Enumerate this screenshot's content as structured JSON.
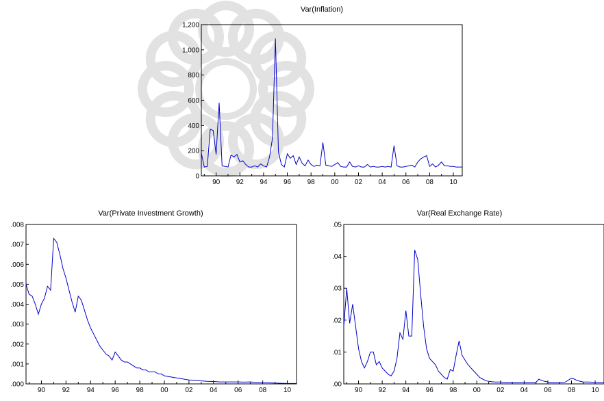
{
  "colors": {
    "line": "#0000cc",
    "axis": "#000000",
    "watermark": "#e2e2e2"
  },
  "watermark": {
    "icon": "decorative-rosette-watermark-icon"
  },
  "chart_data": [
    {
      "type": "line",
      "title": "Var(Inflation)",
      "xlabel": "",
      "ylabel": "",
      "xlim": [
        1988.75,
        2010.75
      ],
      "ylim": [
        0,
        1200
      ],
      "grid": false,
      "x_ticks": [
        "90",
        "92",
        "94",
        "96",
        "98",
        "00",
        "02",
        "04",
        "06",
        "08",
        "10"
      ],
      "y_ticks": [
        "0",
        "200",
        "400",
        "600",
        "800",
        "1,000",
        "1,200"
      ],
      "y_tick_values": [
        0,
        200,
        400,
        600,
        800,
        1000,
        1200
      ],
      "series": [
        {
          "x": [
            1988.75,
            1989.0,
            1989.25,
            1989.5,
            1989.75,
            1990.0,
            1990.25,
            1990.5,
            1990.75,
            1991.0,
            1991.25,
            1991.5,
            1991.75,
            1992.0,
            1992.25,
            1992.5,
            1992.75,
            1993.0,
            1993.25,
            1993.5,
            1993.75,
            1994.0,
            1994.25,
            1994.5,
            1994.75,
            1995.0,
            1995.25,
            1995.5,
            1995.75,
            1996.0,
            1996.25,
            1996.5,
            1996.75,
            1997.0,
            1997.25,
            1997.5,
            1997.75,
            1998.0,
            1998.25,
            1998.5,
            1998.75,
            1999.0,
            1999.25,
            1999.5,
            1999.75,
            2000.0,
            2000.25,
            2000.5,
            2000.75,
            2001.0,
            2001.25,
            2001.5,
            2001.75,
            2002.0,
            2002.25,
            2002.5,
            2002.75,
            2003.0,
            2003.25,
            2003.5,
            2003.75,
            2004.0,
            2004.25,
            2004.5,
            2004.75,
            2005.0,
            2005.25,
            2005.5,
            2005.75,
            2006.0,
            2006.25,
            2006.5,
            2006.75,
            2007.0,
            2007.25,
            2007.5,
            2007.75,
            2008.0,
            2008.25,
            2008.5,
            2008.75,
            2009.0,
            2009.25,
            2009.5,
            2009.75,
            2010.0,
            2010.25,
            2010.5,
            2010.75
          ],
          "y": [
            180,
            70,
            75,
            370,
            360,
            170,
            580,
            80,
            75,
            70,
            165,
            150,
            170,
            110,
            120,
            90,
            70,
            70,
            80,
            70,
            95,
            80,
            70,
            150,
            300,
            1090,
            190,
            90,
            70,
            175,
            140,
            160,
            90,
            150,
            100,
            80,
            125,
            90,
            75,
            85,
            80,
            265,
            85,
            80,
            75,
            90,
            105,
            75,
            70,
            70,
            110,
            75,
            70,
            80,
            70,
            70,
            90,
            70,
            75,
            70,
            70,
            75,
            70,
            75,
            70,
            240,
            80,
            70,
            70,
            75,
            80,
            85,
            70,
            110,
            135,
            150,
            160,
            75,
            95,
            70,
            85,
            110,
            80,
            80,
            75,
            75,
            70,
            70,
            70
          ]
        }
      ]
    },
    {
      "type": "line",
      "title": "Var(Private Investment Growth)",
      "xlabel": "",
      "ylabel": "",
      "xlim": [
        1988.75,
        2010.75
      ],
      "ylim": [
        0,
        0.008
      ],
      "grid": false,
      "x_ticks": [
        "90",
        "92",
        "94",
        "96",
        "98",
        "00",
        "02",
        "04",
        "06",
        "08",
        "10"
      ],
      "y_ticks": [
        ".000",
        ".001",
        ".002",
        ".003",
        ".004",
        ".005",
        ".006",
        ".007",
        ".008"
      ],
      "y_tick_values": [
        0,
        0.001,
        0.002,
        0.003,
        0.004,
        0.005,
        0.006,
        0.007,
        0.008
      ],
      "series": [
        {
          "x": [
            1988.75,
            1989.0,
            1989.25,
            1989.5,
            1989.75,
            1990.0,
            1990.25,
            1990.5,
            1990.75,
            1991.0,
            1991.25,
            1991.5,
            1991.75,
            1992.0,
            1992.25,
            1992.5,
            1992.75,
            1993.0,
            1993.25,
            1993.5,
            1993.75,
            1994.0,
            1994.25,
            1994.5,
            1994.75,
            1995.0,
            1995.25,
            1995.5,
            1995.75,
            1996.0,
            1996.25,
            1996.5,
            1996.75,
            1997.0,
            1997.25,
            1997.5,
            1997.75,
            1998.0,
            1998.25,
            1998.5,
            1998.75,
            1999.0,
            1999.25,
            1999.5,
            1999.75,
            2000.0,
            2000.5,
            2001.0,
            2001.5,
            2002.0,
            2002.5,
            2003.0,
            2003.5,
            2004.0,
            2004.5,
            2005.0,
            2005.5,
            2006.0,
            2006.5,
            2007.0,
            2007.5,
            2008.0,
            2008.5,
            2009.0,
            2009.5,
            2010.0,
            2010.5,
            2010.75
          ],
          "y": [
            0.005,
            0.0045,
            0.0044,
            0.004,
            0.0035,
            0.004,
            0.0043,
            0.0049,
            0.0047,
            0.0073,
            0.0071,
            0.0065,
            0.0058,
            0.0053,
            0.0047,
            0.0041,
            0.0036,
            0.0044,
            0.0042,
            0.0037,
            0.0032,
            0.0028,
            0.0025,
            0.0022,
            0.0019,
            0.0017,
            0.0015,
            0.0014,
            0.0012,
            0.0016,
            0.0014,
            0.0012,
            0.0011,
            0.0011,
            0.001,
            0.0009,
            0.0008,
            0.0008,
            0.0007,
            0.0007,
            0.0006,
            0.0006,
            0.0006,
            0.0005,
            0.0005,
            0.0004,
            0.00035,
            0.0003,
            0.00025,
            0.0002,
            0.00018,
            0.00015,
            0.00013,
            0.00012,
            0.0001,
            0.0001,
            0.0001,
            0.0001,
            9e-05,
            0.0001,
            8e-05,
            6e-05,
            5e-05,
            4e-05,
            3e-05,
            2e-05,
            2e-05,
            2e-05
          ]
        }
      ]
    },
    {
      "type": "line",
      "title": "Var(Real Exchange Rate)",
      "xlabel": "",
      "ylabel": "",
      "xlim": [
        1988.75,
        2010.75
      ],
      "ylim": [
        0,
        0.05
      ],
      "grid": false,
      "x_ticks": [
        "90",
        "92",
        "94",
        "96",
        "98",
        "00",
        "02",
        "04",
        "06",
        "08",
        "10"
      ],
      "y_ticks": [
        ".00",
        ".01",
        ".02",
        ".03",
        ".04",
        ".05"
      ],
      "y_tick_values": [
        0,
        0.01,
        0.02,
        0.03,
        0.04,
        0.05
      ],
      "series": [
        {
          "x": [
            1988.75,
            1989.0,
            1989.25,
            1989.5,
            1989.75,
            1990.0,
            1990.25,
            1990.5,
            1990.75,
            1991.0,
            1991.25,
            1991.5,
            1991.75,
            1992.0,
            1992.25,
            1992.5,
            1992.75,
            1993.0,
            1993.25,
            1993.5,
            1993.75,
            1994.0,
            1994.25,
            1994.5,
            1994.75,
            1995.0,
            1995.25,
            1995.5,
            1995.75,
            1996.0,
            1996.25,
            1996.5,
            1996.75,
            1997.0,
            1997.25,
            1997.5,
            1997.75,
            1998.0,
            1998.25,
            1998.5,
            1998.75,
            1999.0,
            1999.25,
            1999.5,
            1999.75,
            2000.0,
            2000.25,
            2000.5,
            2000.75,
            2001.0,
            2001.5,
            2002.0,
            2002.5,
            2003.0,
            2003.5,
            2004.0,
            2004.5,
            2005.0,
            2005.25,
            2005.5,
            2005.75,
            2006.0,
            2006.5,
            2007.0,
            2007.5,
            2008.0,
            2008.25,
            2008.5,
            2008.75,
            2009.0,
            2009.5,
            2010.0,
            2010.5,
            2010.75
          ],
          "y": [
            0.018,
            0.03,
            0.019,
            0.025,
            0.018,
            0.011,
            0.007,
            0.005,
            0.007,
            0.01,
            0.01,
            0.006,
            0.007,
            0.005,
            0.004,
            0.003,
            0.0025,
            0.004,
            0.008,
            0.016,
            0.014,
            0.023,
            0.015,
            0.015,
            0.042,
            0.039,
            0.028,
            0.018,
            0.011,
            0.008,
            0.007,
            0.006,
            0.004,
            0.003,
            0.002,
            0.0015,
            0.0045,
            0.004,
            0.009,
            0.0135,
            0.009,
            0.0075,
            0.006,
            0.005,
            0.004,
            0.003,
            0.002,
            0.0015,
            0.001,
            0.0008,
            0.0006,
            0.0006,
            0.0005,
            0.0005,
            0.0005,
            0.0005,
            0.0005,
            0.0005,
            0.0015,
            0.001,
            0.0008,
            0.0006,
            0.0004,
            0.0004,
            0.0006,
            0.0018,
            0.0015,
            0.001,
            0.0008,
            0.0006,
            0.0006,
            0.0005,
            0.0005,
            0.0005
          ]
        }
      ]
    }
  ]
}
